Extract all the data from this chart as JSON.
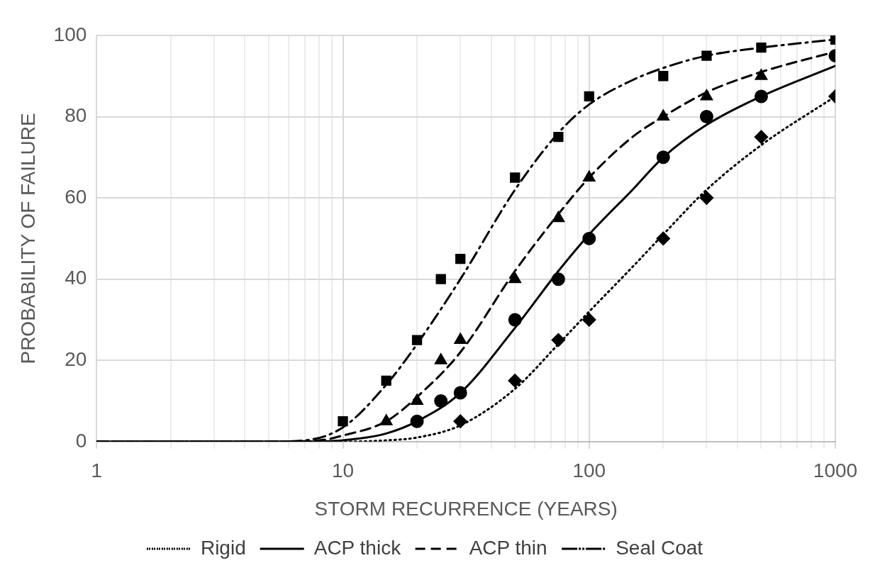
{
  "chart_data": {
    "type": "line",
    "xlabel": "STORM RECURRENCE (YEARS)",
    "ylabel": "PROBABILITY OF FAILURE",
    "log": "x",
    "grid": true,
    "legend": "bottom",
    "xlim": [
      1,
      1000
    ],
    "ylim": [
      0,
      100
    ],
    "xticks": [
      1,
      {
        "value": 2,
        "label": null
      },
      {
        "value": 3,
        "label": null
      },
      {
        "value": 4,
        "label": null
      },
      {
        "value": 5,
        "label": null
      },
      {
        "value": 6,
        "label": null
      },
      {
        "value": 7,
        "label": null
      },
      {
        "value": 8,
        "label": null
      },
      {
        "value": 9,
        "label": null
      },
      10,
      {
        "value": 20,
        "label": null
      },
      {
        "value": 30,
        "label": null
      },
      {
        "value": 40,
        "label": null
      },
      {
        "value": 50,
        "label": null
      },
      {
        "value": 60,
        "label": null
      },
      {
        "value": 70,
        "label": null
      },
      {
        "value": 80,
        "label": null
      },
      {
        "value": 90,
        "label": null
      },
      100,
      {
        "value": 200,
        "label": null
      },
      {
        "value": 300,
        "label": null
      },
      {
        "value": 400,
        "label": null
      },
      {
        "value": 500,
        "label": null
      },
      {
        "value": 600,
        "label": null
      },
      {
        "value": 700,
        "label": null
      },
      {
        "value": 800,
        "label": null
      },
      {
        "value": 900,
        "label": null
      },
      1000
    ],
    "yticks": [
      0,
      20,
      40,
      60,
      80,
      100
    ],
    "series": [
      {
        "type": "scatter",
        "marker": "diamond",
        "color": "#000000",
        "x": [
          30,
          50,
          75,
          100,
          200,
          300,
          500,
          1000
        ],
        "values": [
          5,
          15,
          25,
          30,
          50,
          60,
          75,
          85
        ]
      },
      {
        "type": "scatter",
        "marker": "circle",
        "color": "#000000",
        "x": [
          20,
          25,
          30,
          50,
          75,
          100,
          200,
          300,
          500,
          1000
        ],
        "values": [
          5,
          10,
          12,
          30,
          40,
          50,
          70,
          80,
          85,
          95
        ]
      },
      {
        "type": "scatter",
        "marker": "triangle",
        "color": "#000000",
        "x": [
          15,
          20,
          25,
          30,
          50,
          75,
          100,
          200,
          300,
          500
        ],
        "values": [
          5,
          10,
          20,
          25,
          40,
          55,
          65,
          80,
          85,
          90
        ]
      },
      {
        "type": "scatter",
        "marker": "square",
        "color": "#000000",
        "x": [
          10,
          15,
          20,
          25,
          30,
          50,
          75,
          100,
          200,
          300,
          500,
          1000
        ],
        "values": [
          5,
          15,
          25,
          40,
          45,
          65,
          75,
          85,
          90,
          95,
          97,
          99
        ]
      },
      {
        "name": "Rigid",
        "type": "line",
        "marker": "none",
        "line_style": "dotted",
        "color": "#000000",
        "x": [
          1,
          5,
          10,
          15,
          20,
          30,
          50,
          75,
          100,
          150,
          200,
          300,
          500,
          1000
        ],
        "values": [
          0,
          0,
          0,
          0.3,
          1,
          4,
          13,
          24,
          32,
          43,
          51,
          62,
          73,
          85
        ]
      },
      {
        "name": "ACP thick",
        "type": "line",
        "marker": "none",
        "line_style": "solid",
        "color": "#000000",
        "x": [
          1,
          5,
          7,
          10,
          15,
          20,
          30,
          50,
          75,
          100,
          150,
          200,
          300,
          500,
          1000
        ],
        "values": [
          0,
          0,
          0,
          0.3,
          2,
          5,
          12,
          28,
          42,
          51,
          62,
          70,
          78,
          85,
          92.5
        ]
      },
      {
        "name": "ACP thin",
        "type": "line",
        "marker": "none",
        "line_style": "dashed",
        "color": "#000000",
        "x": [
          1,
          5,
          8,
          10,
          15,
          20,
          30,
          50,
          75,
          100,
          150,
          200,
          300,
          500,
          1000
        ],
        "values": [
          0,
          0,
          0.3,
          1.5,
          5,
          11,
          22,
          42,
          56,
          65,
          75,
          80,
          86,
          91,
          96
        ]
      },
      {
        "name": "Seal Coat",
        "type": "line",
        "marker": "none",
        "line_style": "dashdot",
        "color": "#000000",
        "x": [
          1,
          5,
          7,
          10,
          15,
          20,
          30,
          50,
          75,
          100,
          150,
          200,
          300,
          500,
          1000
        ],
        "values": [
          0,
          0,
          0.3,
          3.5,
          14,
          24,
          40,
          62,
          76,
          83,
          89,
          92,
          95,
          97,
          99
        ]
      }
    ]
  }
}
